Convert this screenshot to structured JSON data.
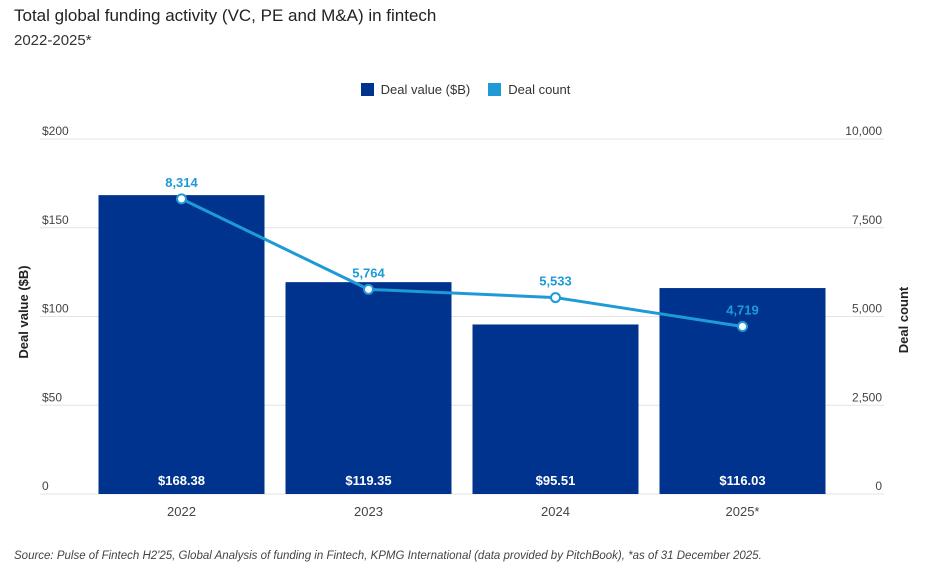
{
  "title": "Total global funding activity (VC, PE and M&A) in fintech",
  "subtitle": "2022-2025*",
  "source": "Source: Pulse of Fintech H2'25, Global Analysis of funding in Fintech, KPMG International (data provided by PitchBook), *as of 31 December 2025.",
  "colors": {
    "bar": "#00338d",
    "line": "#1e9bd7",
    "grid": "#e3e3e3"
  },
  "chart_data": {
    "type": "bar",
    "categories": [
      "2022",
      "2023",
      "2024",
      "2025*"
    ],
    "series": [
      {
        "name": "Deal value ($B)",
        "type": "bar",
        "axis": "left",
        "values": [
          168.38,
          119.35,
          95.51,
          116.03
        ],
        "labels": [
          "$168.38",
          "$119.35",
          "$95.51",
          "$116.03"
        ]
      },
      {
        "name": "Deal count",
        "type": "line",
        "axis": "right",
        "values": [
          8314,
          5764,
          5533,
          4719
        ],
        "labels": [
          "8,314",
          "5,764",
          "5,533",
          "4,719"
        ]
      }
    ],
    "ylabel": "Deal value ($B)",
    "ylim": [
      0,
      200
    ],
    "yticks": [
      "0",
      "$50",
      "$100",
      "$150",
      "$200"
    ],
    "y2label": "Deal count",
    "y2lim": [
      0,
      10000
    ],
    "y2ticks": [
      "0",
      "2,500",
      "5,000",
      "7,500",
      "10,000"
    ],
    "legend": "top-center",
    "grid": true
  }
}
